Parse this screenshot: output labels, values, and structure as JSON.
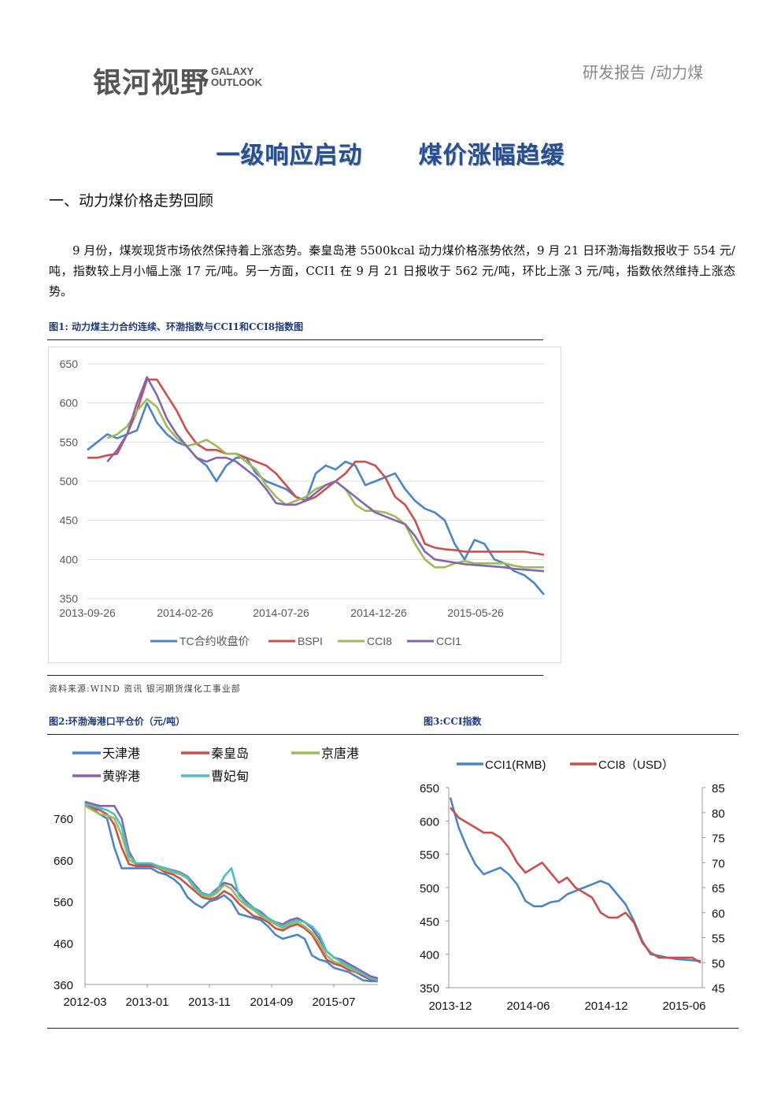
{
  "header": {
    "logo_cn": "银河视野",
    "logo_en_line1": "GALAXY",
    "logo_en_line2": "OUTLOOK",
    "report_tag": "研发报告 /动力煤"
  },
  "title": {
    "part1": "一级响应启动",
    "part2": "煤价涨幅趋缓"
  },
  "section": {
    "heading": "一、动力煤价格走势回顾"
  },
  "paragraph": "9 月份，煤炭现货市场依然保持着上涨态势。秦皇岛港 5500kcal 动力煤价格涨势依然，9 月 21 日环渤海指数报收于 554 元/吨，指数较上月小幅上涨 17 元/吨。另一方面，CCI1 在 9 月 21 日报收于 562 元/吨，环比上涨 3 元/吨，指数依然维持上涨态势。",
  "figures": {
    "fig1_caption": "图1: 动力煤主力合约连续、环渤指数与CCI1和CCI8指数图",
    "source": "资料来源:WIND 资讯    银河期货煤化工事业部",
    "fig2_caption": "图2:环渤海港口平仓价（元/吨）",
    "fig3_caption": "图3:CCI指数"
  },
  "chart_data": [
    {
      "type": "line",
      "x_ticks": [
        "2013-09-26",
        "2014-02-26",
        "2014-07-26",
        "2014-12-26",
        "2015-05-26"
      ],
      "yticks": [
        350,
        400,
        450,
        500,
        550,
        600,
        650
      ],
      "ylim": [
        350,
        650
      ],
      "grid": true,
      "legend": "bottom",
      "series": [
        {
          "name": "TC合约收盘价",
          "color": "#4a86c5",
          "values": [
            540,
            550,
            560,
            555,
            560,
            565,
            600,
            575,
            560,
            550,
            545,
            530,
            520,
            500,
            520,
            530,
            530,
            510,
            500,
            495,
            490,
            480,
            475,
            510,
            520,
            515,
            525,
            520,
            495,
            500,
            505,
            510,
            490,
            475,
            465,
            460,
            450,
            420,
            400,
            425,
            420,
            400,
            395,
            385,
            380,
            370,
            355
          ]
        },
        {
          "name": "BSPI",
          "color": "#c9504d",
          "values": [
            530,
            530,
            533,
            535,
            560,
            590,
            630,
            630,
            610,
            590,
            565,
            548,
            540,
            540,
            535,
            535,
            530,
            525,
            520,
            510,
            495,
            480,
            475,
            480,
            490,
            500,
            510,
            525,
            525,
            520,
            505,
            480,
            470,
            450,
            420,
            415,
            413,
            412,
            410,
            410,
            410,
            410,
            410,
            410,
            410,
            408,
            406
          ]
        },
        {
          "name": "CCI8",
          "color": "#9dbb5a",
          "values": [
            null,
            null,
            555,
            560,
            570,
            590,
            605,
            595,
            570,
            555,
            545,
            548,
            553,
            545,
            535,
            535,
            525,
            515,
            495,
            480,
            470,
            475,
            480,
            490,
            495,
            500,
            490,
            470,
            462,
            462,
            460,
            455,
            445,
            420,
            400,
            390,
            390,
            395,
            398,
            395,
            395,
            395,
            395,
            392,
            390,
            390,
            390
          ]
        },
        {
          "name": "CCI1",
          "color": "#8466ae",
          "values": [
            null,
            null,
            525,
            540,
            560,
            600,
            633,
            610,
            580,
            560,
            545,
            530,
            525,
            530,
            530,
            525,
            515,
            505,
            490,
            472,
            470,
            470,
            475,
            485,
            495,
            500,
            490,
            480,
            470,
            460,
            455,
            450,
            445,
            430,
            410,
            400,
            398,
            396,
            394,
            393,
            392,
            391,
            390,
            388,
            387,
            386,
            385
          ]
        }
      ]
    },
    {
      "type": "line",
      "x_ticks": [
        "2012-03",
        "2013-01",
        "2013-11",
        "2014-09",
        "2015-07"
      ],
      "yticks": [
        360,
        460,
        560,
        660,
        760
      ],
      "ylim": [
        360,
        800
      ],
      "legend": "top",
      "series": [
        {
          "name": "天津港",
          "color": "#4a86c5",
          "values": [
            800,
            785,
            770,
            760,
            690,
            640,
            640,
            640,
            640,
            640,
            630,
            625,
            615,
            600,
            570,
            555,
            545,
            560,
            565,
            575,
            560,
            530,
            525,
            520,
            515,
            500,
            480,
            470,
            475,
            480,
            470,
            430,
            420,
            415,
            400,
            395,
            390,
            380,
            370,
            368,
            368
          ]
        },
        {
          "name": "秦皇岛",
          "color": "#c9504d",
          "values": [
            790,
            785,
            780,
            770,
            745,
            690,
            650,
            645,
            645,
            645,
            640,
            630,
            625,
            615,
            600,
            585,
            570,
            565,
            570,
            585,
            575,
            555,
            540,
            525,
            520,
            510,
            495,
            490,
            500,
            505,
            495,
            480,
            450,
            420,
            410,
            405,
            395,
            390,
            380,
            372,
            370
          ]
        },
        {
          "name": "京唐港",
          "color": "#9dbb5a",
          "values": [
            790,
            780,
            770,
            768,
            760,
            720,
            660,
            650,
            650,
            650,
            642,
            635,
            630,
            625,
            615,
            590,
            575,
            570,
            580,
            600,
            590,
            565,
            550,
            540,
            525,
            515,
            505,
            495,
            505,
            510,
            500,
            485,
            460,
            430,
            415,
            410,
            400,
            392,
            385,
            375,
            372
          ]
        },
        {
          "name": "黄骅港",
          "color": "#8466ae",
          "values": [
            800,
            795,
            790,
            790,
            790,
            760,
            680,
            650,
            650,
            650,
            645,
            640,
            635,
            630,
            620,
            600,
            580,
            575,
            590,
            605,
            600,
            580,
            560,
            545,
            535,
            520,
            510,
            505,
            515,
            520,
            510,
            495,
            470,
            440,
            425,
            420,
            410,
            400,
            390,
            380,
            375
          ]
        },
        {
          "name": "曹妃甸",
          "color": "#4bbec8",
          "values": [
            795,
            790,
            785,
            780,
            770,
            740,
            670,
            652,
            652,
            652,
            645,
            640,
            633,
            628,
            618,
            595,
            578,
            575,
            585,
            620,
            640,
            575,
            555,
            545,
            530,
            520,
            510,
            500,
            510,
            515,
            510,
            500,
            480,
            440,
            425,
            415,
            405,
            395,
            385,
            375,
            370
          ]
        }
      ]
    },
    {
      "type": "line",
      "x_ticks": [
        "2013-12",
        "2014-06",
        "2014-12",
        "2015-06"
      ],
      "yticks_left": [
        350,
        400,
        450,
        500,
        550,
        600,
        650
      ],
      "ylim_left": [
        350,
        650
      ],
      "yticks_right": [
        45,
        50,
        55,
        60,
        65,
        70,
        75,
        80,
        85
      ],
      "ylim_right": [
        45,
        85
      ],
      "legend": "top",
      "series": [
        {
          "name": "CCI1(RMB)",
          "axis": "left",
          "color": "#4a86c5",
          "values": [
            635,
            590,
            560,
            535,
            520,
            525,
            530,
            520,
            505,
            480,
            472,
            472,
            478,
            480,
            490,
            495,
            500,
            505,
            510,
            505,
            490,
            475,
            450,
            420,
            400,
            398,
            395,
            393,
            392,
            391,
            390
          ]
        },
        {
          "name": "CCI8（USD）",
          "axis": "right",
          "color": "#c9504d",
          "values": [
            81,
            79,
            78,
            77,
            76,
            76,
            75,
            73,
            70,
            68,
            69,
            70,
            68,
            66,
            67,
            65,
            64,
            63,
            60,
            59,
            59,
            60,
            58,
            54,
            52,
            51,
            51,
            51,
            51,
            51,
            50
          ]
        }
      ]
    }
  ]
}
